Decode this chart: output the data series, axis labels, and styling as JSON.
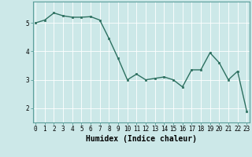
{
  "x": [
    0,
    1,
    2,
    3,
    4,
    5,
    6,
    7,
    8,
    9,
    10,
    11,
    12,
    13,
    14,
    15,
    16,
    17,
    18,
    19,
    20,
    21,
    22,
    23
  ],
  "y": [
    5.0,
    5.1,
    5.35,
    5.25,
    5.2,
    5.2,
    5.22,
    5.1,
    4.45,
    3.75,
    3.0,
    3.2,
    3.0,
    3.05,
    3.1,
    3.0,
    2.75,
    3.35,
    3.35,
    3.95,
    3.6,
    3.0,
    3.3,
    1.9
  ],
  "line_color": "#2d7060",
  "marker": "s",
  "markersize": 2.0,
  "linewidth": 1.0,
  "bg_color": "#cce8e8",
  "grid_color": "#ffffff",
  "xlabel": "Humidex (Indice chaleur)",
  "xlabel_fontsize": 7,
  "yticks": [
    2,
    3,
    4,
    5
  ],
  "xticks": [
    0,
    1,
    2,
    3,
    4,
    5,
    6,
    7,
    8,
    9,
    10,
    11,
    12,
    13,
    14,
    15,
    16,
    17,
    18,
    19,
    20,
    21,
    22,
    23
  ],
  "ylim": [
    1.5,
    5.75
  ],
  "xlim": [
    -0.3,
    23.3
  ],
  "tick_fontsize": 5.5,
  "border_color": "#5a9e9a",
  "axes_bg": "#cce8e8",
  "grid_linewidth": 0.6
}
